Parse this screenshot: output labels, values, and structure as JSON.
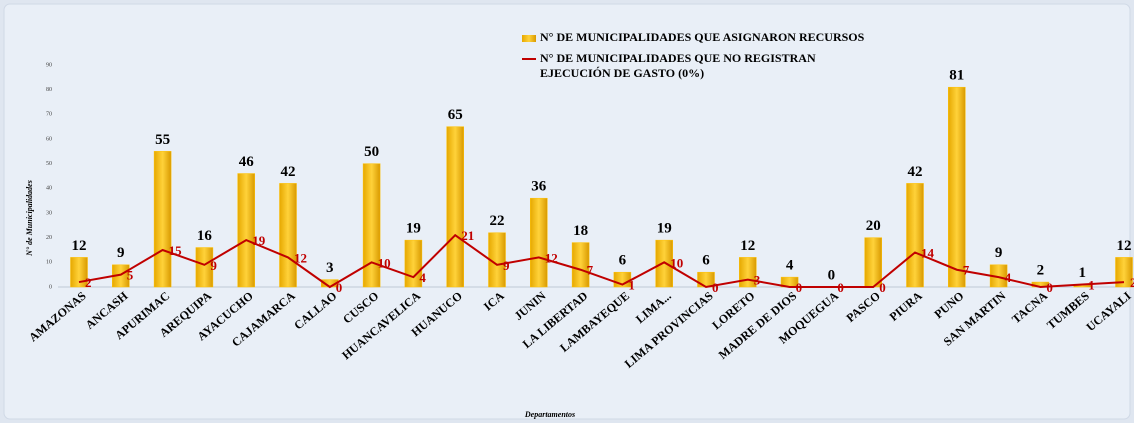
{
  "chart_data": {
    "type": "bar",
    "xlabel": "Departamentos",
    "ylabel": "N° de Municipalidades",
    "categories": [
      "AMAZONAS",
      "ANCASH",
      "APURIMAC",
      "AREQUIPA",
      "AYACUCHO",
      "CAJAMARCA",
      "CALLAO",
      "CUSCO",
      "HUANCAVELICA",
      "HUANUCO",
      "ICA",
      "JUNIN",
      "LA LIBERTAD",
      "LAMBAYEQUE",
      "LIMA...",
      "LIMA PROVINCIAS",
      "LORETO",
      "MADRE DE DIOS",
      "MOQUEGUA",
      "PASCO",
      "PIURA",
      "PUNO",
      "SAN MARTIN",
      "TACNA",
      "TUMBES",
      "UCAYALI"
    ],
    "series": [
      {
        "name": "N° DE MUNICIPALIDADES QUE ASIGNARON RECURSOS",
        "type": "bar",
        "color": "#ffc000",
        "values": [
          12,
          9,
          55,
          16,
          46,
          42,
          3,
          50,
          19,
          65,
          22,
          36,
          18,
          6,
          19,
          6,
          12,
          4,
          0,
          20,
          42,
          81,
          9,
          2,
          1,
          12
        ]
      },
      {
        "name": "N° DE MUNICIPALIDADES QUE NO REGISTRAN EJECUCIÓN DE GASTO (0%)",
        "type": "line",
        "color": "#c00000",
        "values": [
          2,
          5,
          15,
          9,
          19,
          12,
          0,
          10,
          4,
          21,
          9,
          12,
          7,
          1,
          10,
          0,
          3,
          0,
          0,
          0,
          14,
          7,
          4,
          0,
          1,
          2
        ]
      }
    ],
    "ylim": [
      0,
      90
    ],
    "yticks": [
      0,
      10,
      20,
      30,
      40,
      50,
      60,
      70,
      80,
      90
    ],
    "grid": false,
    "legend": "top"
  }
}
